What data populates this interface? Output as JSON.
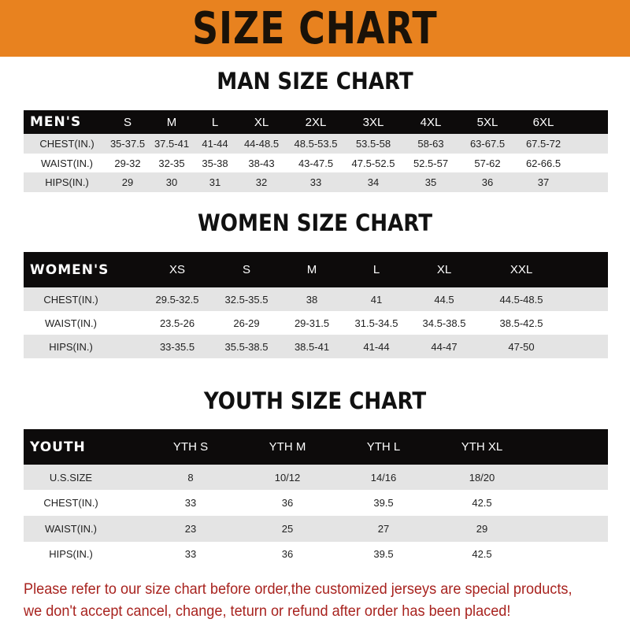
{
  "banner": "SIZE CHART",
  "men": {
    "title": "MAN SIZE CHART",
    "header": [
      "MEN'S",
      "S",
      "M",
      "L",
      "XL",
      "2XL",
      "3XL",
      "4XL",
      "5XL",
      "6XL"
    ],
    "rows": [
      [
        "CHEST(IN.)",
        "35-37.5",
        "37.5-41",
        "41-44",
        "44-48.5",
        "48.5-53.5",
        "53.5-58",
        "58-63",
        "63-67.5",
        "67.5-72"
      ],
      [
        "WAIST(IN.)",
        "29-32",
        "32-35",
        "35-38",
        "38-43",
        "43-47.5",
        "47.5-52.5",
        "52.5-57",
        "57-62",
        "62-66.5"
      ],
      [
        "HIPS(IN.)",
        "29",
        "30",
        "31",
        "32",
        "33",
        "34",
        "35",
        "36",
        "37"
      ]
    ]
  },
  "women": {
    "title": "WOMEN SIZE CHART",
    "header": [
      "WOMEN'S",
      "XS",
      "S",
      "M",
      "L",
      "XL",
      "XXL"
    ],
    "rows": [
      [
        "CHEST(IN.)",
        "29.5-32.5",
        "32.5-35.5",
        "38",
        "41",
        "44.5",
        "44.5-48.5"
      ],
      [
        "WAIST(IN.)",
        "23.5-26",
        "26-29",
        "29-31.5",
        "31.5-34.5",
        "34.5-38.5",
        "38.5-42.5"
      ],
      [
        "HIPS(IN.)",
        "33-35.5",
        "35.5-38.5",
        "38.5-41",
        "41-44",
        "44-47",
        "47-50"
      ]
    ]
  },
  "youth": {
    "title": "YOUTH SIZE CHART",
    "header": [
      "YOUTH",
      "YTH S",
      "YTH M",
      "YTH L",
      "YTH XL"
    ],
    "rows": [
      [
        "U.S.SIZE",
        "8",
        "10/12",
        "14/16",
        "18/20"
      ],
      [
        "CHEST(IN.)",
        "33",
        "36",
        "39.5",
        "42.5"
      ],
      [
        "WAIST(IN.)",
        "23",
        "25",
        "27",
        "29"
      ],
      [
        "HIPS(IN.)",
        "33",
        "36",
        "39.5",
        "42.5"
      ]
    ]
  },
  "note": {
    "line1": "Please refer to our size chart before order,the customized jerseys are special products,",
    "line2": "we don't accept cancel, change, teturn or refund after order has been placed!"
  },
  "colors": {
    "banner": "#e8821f",
    "header_row": "#0d0b0b",
    "stripe": "#e4e4e4",
    "note": "#a8231f"
  }
}
